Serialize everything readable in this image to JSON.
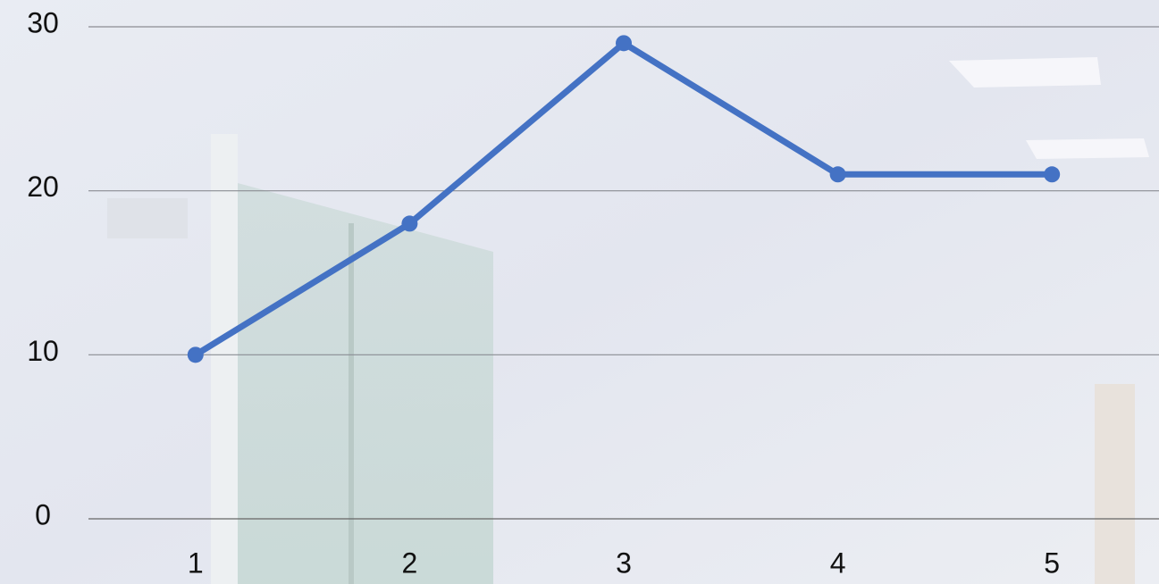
{
  "chart_data": {
    "type": "line",
    "categories": [
      "1",
      "2",
      "3",
      "4",
      "5"
    ],
    "values": [
      10,
      18,
      29,
      21,
      21
    ],
    "color": "#4472c4",
    "ylim": [
      0,
      30
    ],
    "yticks": [
      0,
      10,
      20,
      30
    ],
    "grid": true
  }
}
